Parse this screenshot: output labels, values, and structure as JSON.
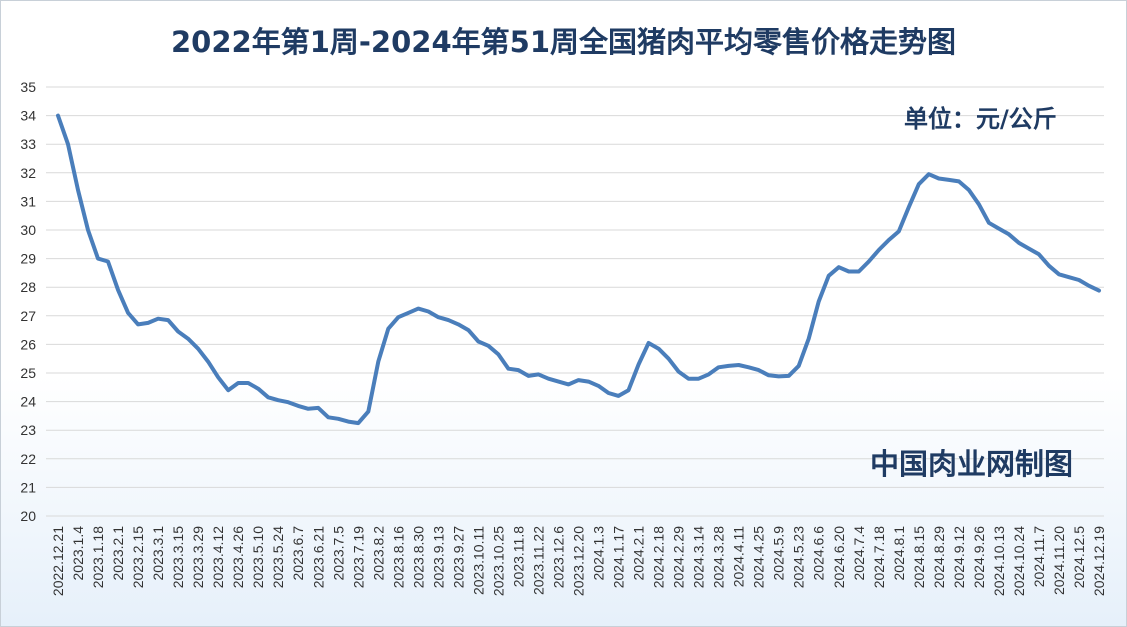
{
  "chart_data": {
    "type": "line",
    "title": "2022年第1周-2024年第51周全国猪肉平均零售价格走势图",
    "unit": "单位：元/公斤",
    "source": "中国肉业网制图",
    "ylim": [
      20,
      35
    ],
    "yticks": [
      20,
      21,
      22,
      23,
      24,
      25,
      26,
      27,
      28,
      29,
      30,
      31,
      32,
      33,
      34,
      35
    ],
    "grid": true,
    "line_color": "#4a7ebb",
    "x_tick_labels": [
      "2022.12.21",
      "2023.1.4",
      "2023.1.18",
      "2023.2.1",
      "2023.2.15",
      "2023.3.1",
      "2023.3.15",
      "2023.3.29",
      "2023.4.12",
      "2023.4.26",
      "2023.5.10",
      "2023.5.24",
      "2023.6.7",
      "2023.6.21",
      "2023.7.5",
      "2023.7.19",
      "2023.8.2",
      "2023.8.16",
      "2023.8.30",
      "2023.9.13",
      "2023.9.27",
      "2023.10.11",
      "2023.10.25",
      "2023.11.8",
      "2023.11.22",
      "2023.12.6",
      "2023.12.20",
      "2024.1.3",
      "2024.1.17",
      "2024.2.1",
      "2024.2.18",
      "2024.2.29",
      "2024.3.14",
      "2024.3.28",
      "2024.4.11",
      "2024.4.25",
      "2024.5.9",
      "2024.5.23",
      "2024.6.6",
      "2024.6.20",
      "2024.7.4",
      "2024.7.18",
      "2024.8.1",
      "2024.8.15",
      "2024.8.29",
      "2024.9.12",
      "2024.9.26",
      "2024.10.13",
      "2024.10.24",
      "2024.11.7",
      "2024.11.20",
      "2024.12.5",
      "2024.12.19"
    ],
    "values": [
      34.0,
      33.0,
      31.4,
      30.0,
      29.0,
      28.9,
      27.9,
      27.1,
      26.7,
      26.75,
      26.9,
      26.85,
      26.45,
      26.2,
      25.85,
      25.4,
      24.85,
      24.4,
      24.65,
      24.65,
      24.45,
      24.15,
      24.05,
      23.98,
      23.85,
      23.75,
      23.78,
      23.45,
      23.4,
      23.3,
      23.25,
      23.65,
      25.4,
      26.55,
      26.95,
      27.1,
      27.25,
      27.15,
      26.95,
      26.85,
      26.7,
      26.5,
      26.1,
      25.95,
      25.65,
      25.15,
      25.1,
      24.9,
      24.95,
      24.8,
      24.7,
      24.6,
      24.75,
      24.7,
      24.55,
      24.3,
      24.2,
      24.4,
      25.3,
      26.05,
      25.85,
      25.5,
      25.05,
      24.8,
      24.8,
      24.95,
      25.2,
      25.25,
      25.28,
      25.2,
      25.1,
      24.92,
      24.88,
      24.9,
      25.25,
      26.2,
      27.5,
      28.4,
      28.7,
      28.55,
      28.55,
      28.9,
      29.3,
      29.65,
      29.95,
      30.8,
      31.6,
      31.95,
      31.8,
      31.75,
      31.7,
      31.4,
      30.9,
      30.25,
      30.05,
      29.85,
      29.55,
      29.35,
      29.15,
      28.75,
      28.45,
      28.35,
      28.25,
      28.05,
      27.88
    ]
  }
}
